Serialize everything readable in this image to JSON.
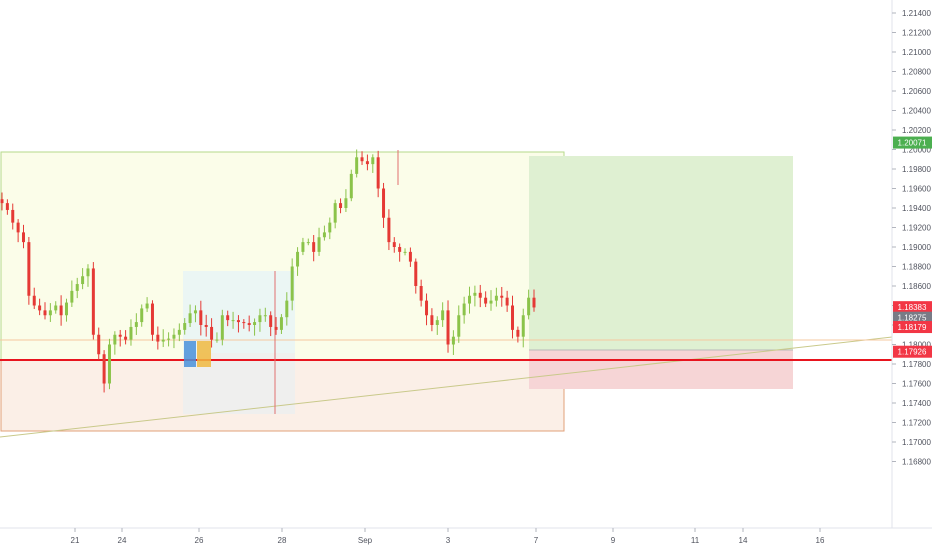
{
  "chart_data": {
    "type": "candlestick",
    "x_ticks": [
      "21",
      "24",
      "26",
      "28",
      "Sep",
      "3",
      "7",
      "9",
      "11",
      "14",
      "16"
    ],
    "y_ticks": [
      "1.21400",
      "1.21200",
      "1.21000",
      "1.20800",
      "1.20600",
      "1.20400",
      "1.20200",
      "1.20000",
      "1.19800",
      "1.19600",
      "1.19400",
      "1.19200",
      "1.19000",
      "1.18800",
      "1.18600",
      "1.18400",
      "1.18200",
      "1.18000",
      "1.17800",
      "1.17600",
      "1.17400",
      "1.17200",
      "1.17000",
      "1.16800"
    ],
    "ylim": [
      1.166,
      1.2155
    ],
    "price_tags": [
      {
        "label": "1.20071",
        "value": 1.20071,
        "color": "#4caf50"
      },
      {
        "label": "1.18383",
        "value": 1.18383,
        "color": "#f23645"
      },
      {
        "label": "1.18275",
        "value": 1.18275,
        "color": "#787b86"
      },
      {
        "label": "1.18179",
        "value": 1.18179,
        "color": "#f23645"
      },
      {
        "label": "1.17926",
        "value": 1.17926,
        "color": "#f23645"
      }
    ],
    "key_levels": {
      "support_line": 1.18179,
      "range_top": 1.2012,
      "range_mid": 1.1817,
      "range_bottom": 1.1753,
      "entry": 1.18275,
      "target": 1.20071,
      "stop": 1.17926
    },
    "close_path": [
      1.1945,
      1.1938,
      1.1925,
      1.1915,
      1.1905,
      1.185,
      1.184,
      1.1835,
      1.183,
      1.1835,
      1.184,
      1.183,
      1.1843,
      1.1855,
      1.1862,
      1.187,
      1.1878,
      1.181,
      1.179,
      1.176,
      1.18,
      1.181,
      1.1808,
      1.1805,
      1.1818,
      1.1823,
      1.1837,
      1.1842,
      1.181,
      1.1803,
      1.1805,
      1.1806,
      1.181,
      1.1815,
      1.1822,
      1.1832,
      1.1835,
      1.182,
      1.1818,
      1.1805,
      1.1805,
      1.183,
      1.1825,
      1.1825,
      1.1823,
      1.1822,
      1.182,
      1.1823,
      1.183,
      1.183,
      1.1818,
      1.1815,
      1.1828,
      1.1845,
      1.188,
      1.1895,
      1.1905,
      1.1905,
      1.1895,
      1.191,
      1.1915,
      1.1925,
      1.1945,
      1.194,
      1.195,
      1.1975,
      1.1992,
      1.1988,
      1.1985,
      1.1992,
      1.196,
      1.193,
      1.1905,
      1.19,
      1.1895,
      1.1895,
      1.1885,
      1.186,
      1.1845,
      1.183,
      1.182,
      1.1825,
      1.1835,
      1.18,
      1.1808,
      1.183,
      1.1842,
      1.185,
      1.1853,
      1.1848,
      1.1842,
      1.1845,
      1.185,
      1.1848,
      1.184,
      1.1815,
      1.1808,
      1.183,
      1.1848,
      1.1838
    ]
  }
}
